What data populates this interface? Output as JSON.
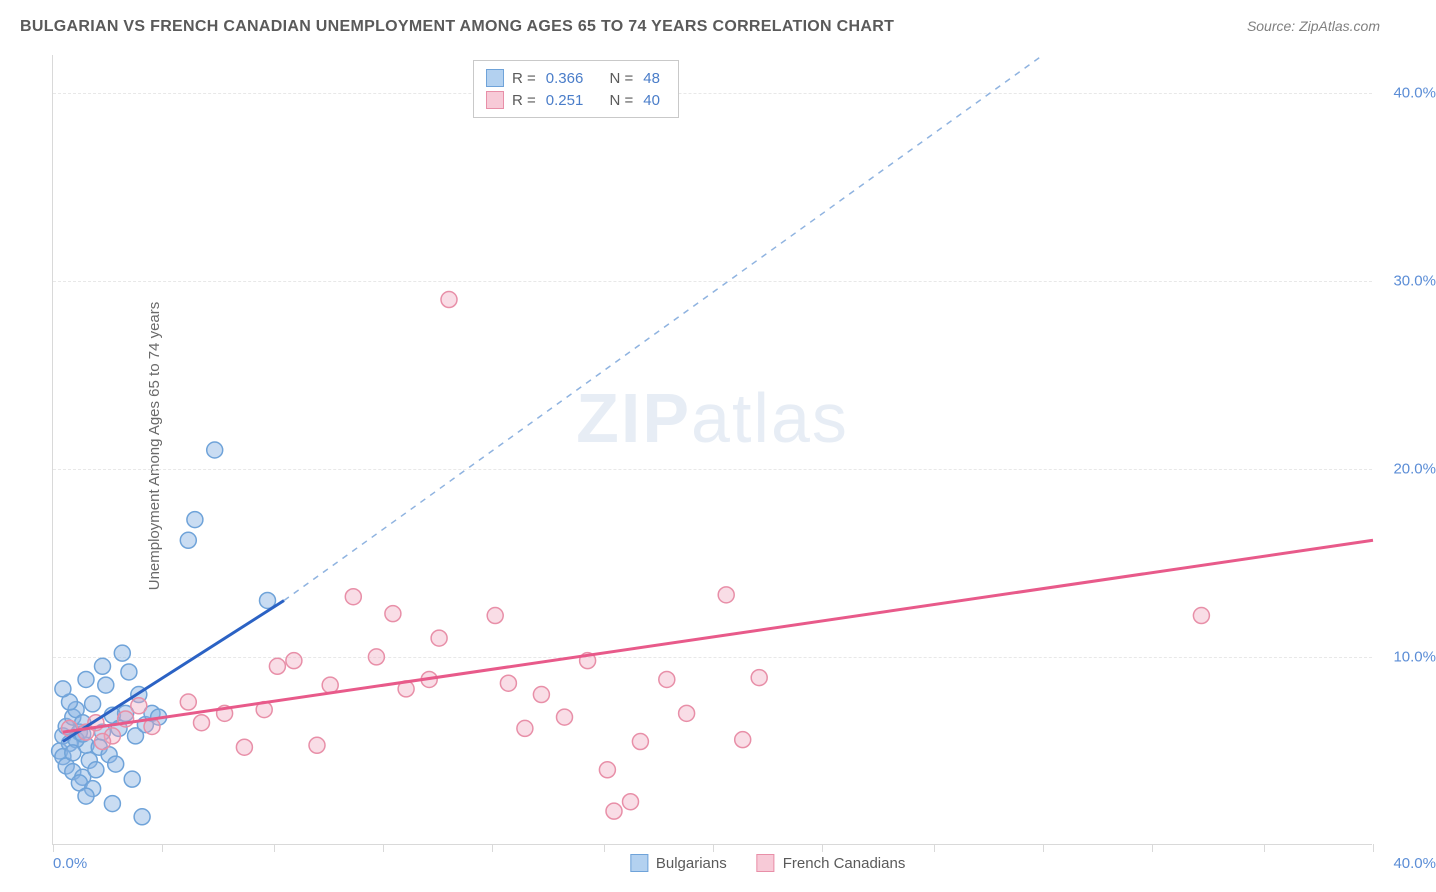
{
  "title": "BULGARIAN VS FRENCH CANADIAN UNEMPLOYMENT AMONG AGES 65 TO 74 YEARS CORRELATION CHART",
  "source_label": "Source:",
  "source_value": "ZipAtlas.com",
  "ylabel": "Unemployment Among Ages 65 to 74 years",
  "watermark": "ZIPatlas",
  "chart": {
    "type": "scatter",
    "xlim": [
      0,
      40
    ],
    "ylim": [
      0,
      42
    ],
    "xtick_positions": [
      0,
      3.3,
      6.7,
      10,
      13.3,
      16.7,
      20,
      23.3,
      26.7,
      30,
      33.3,
      36.7,
      40
    ],
    "xtick_labels_min": "0.0%",
    "xtick_labels_max": "40.0%",
    "ytick_values": [
      10,
      20,
      30,
      40
    ],
    "ytick_labels": [
      "10.0%",
      "20.0%",
      "30.0%",
      "40.0%"
    ],
    "grid_color": "#e8e8e8",
    "axis_color": "#d9d9d9",
    "background_color": "#ffffff",
    "tick_label_color": "#5b8dd6",
    "series": [
      {
        "name": "Bulgarians",
        "marker_color_fill": "rgba(135,178,226,0.45)",
        "marker_color_stroke": "#6fa3d9",
        "marker_radius": 8,
        "trend_line_color": "#2b62c4",
        "trend_line_width": 3,
        "trend_dashed_color": "#8fb3e0",
        "trend": {
          "x1": 0.3,
          "y1": 5.5,
          "x2": 7.0,
          "y2": 13.0,
          "x2_ext": 30,
          "y2_ext": 42
        },
        "swatch_fill": "#b3d1f0",
        "swatch_border": "#6fa3d9",
        "points": [
          [
            0.3,
            5.8
          ],
          [
            0.4,
            6.3
          ],
          [
            0.2,
            5.0
          ],
          [
            0.6,
            6.8
          ],
          [
            0.5,
            5.4
          ],
          [
            0.8,
            6.0
          ],
          [
            0.3,
            4.7
          ],
          [
            0.7,
            7.2
          ],
          [
            1.0,
            5.3
          ],
          [
            0.9,
            6.5
          ],
          [
            1.2,
            7.5
          ],
          [
            0.4,
            4.2
          ],
          [
            1.5,
            6.0
          ],
          [
            0.6,
            3.9
          ],
          [
            1.4,
            5.2
          ],
          [
            1.8,
            6.9
          ],
          [
            0.5,
            7.6
          ],
          [
            1.1,
            4.5
          ],
          [
            0.9,
            3.6
          ],
          [
            2.0,
            6.2
          ],
          [
            1.6,
            8.5
          ],
          [
            0.7,
            5.6
          ],
          [
            1.3,
            4.0
          ],
          [
            2.2,
            7.0
          ],
          [
            1.0,
            8.8
          ],
          [
            0.8,
            3.3
          ],
          [
            2.5,
            5.8
          ],
          [
            1.7,
            4.8
          ],
          [
            2.3,
            9.2
          ],
          [
            0.3,
            8.3
          ],
          [
            2.8,
            6.4
          ],
          [
            1.2,
            3.0
          ],
          [
            3.0,
            7.0
          ],
          [
            2.1,
            10.2
          ],
          [
            1.9,
            4.3
          ],
          [
            2.6,
            8.0
          ],
          [
            3.2,
            6.8
          ],
          [
            1.8,
            2.2
          ],
          [
            2.4,
            3.5
          ],
          [
            2.7,
            1.5
          ],
          [
            4.1,
            16.2
          ],
          [
            4.3,
            17.3
          ],
          [
            4.9,
            21.0
          ],
          [
            1.5,
            9.5
          ],
          [
            1.0,
            2.6
          ],
          [
            6.5,
            13.0
          ],
          [
            0.6,
            4.9
          ],
          [
            0.9,
            5.9
          ]
        ]
      },
      {
        "name": "French Canadians",
        "marker_color_fill": "rgba(238,165,190,0.38)",
        "marker_color_stroke": "#e88fa8",
        "marker_radius": 8,
        "trend_line_color": "#e85a8a",
        "trend_line_width": 3,
        "trend": {
          "x1": 0.3,
          "y1": 6.0,
          "x2": 40,
          "y2": 16.2
        },
        "swatch_fill": "#f7cad7",
        "swatch_border": "#e88fa8",
        "points": [
          [
            0.5,
            6.2
          ],
          [
            1.0,
            6.0
          ],
          [
            1.3,
            6.5
          ],
          [
            1.8,
            5.8
          ],
          [
            2.2,
            6.7
          ],
          [
            2.6,
            7.4
          ],
          [
            3.0,
            6.3
          ],
          [
            4.1,
            7.6
          ],
          [
            4.5,
            6.5
          ],
          [
            5.2,
            7.0
          ],
          [
            5.8,
            5.2
          ],
          [
            6.4,
            7.2
          ],
          [
            6.8,
            9.5
          ],
          [
            7.3,
            9.8
          ],
          [
            8.0,
            5.3
          ],
          [
            8.4,
            8.5
          ],
          [
            9.1,
            13.2
          ],
          [
            9.8,
            10.0
          ],
          [
            10.3,
            12.3
          ],
          [
            10.7,
            8.3
          ],
          [
            11.4,
            8.8
          ],
          [
            11.7,
            11.0
          ],
          [
            12.0,
            29.0
          ],
          [
            13.4,
            12.2
          ],
          [
            13.8,
            8.6
          ],
          [
            14.3,
            6.2
          ],
          [
            14.8,
            8.0
          ],
          [
            15.5,
            6.8
          ],
          [
            16.2,
            9.8
          ],
          [
            16.8,
            4.0
          ],
          [
            17.0,
            1.8
          ],
          [
            17.5,
            2.3
          ],
          [
            17.8,
            5.5
          ],
          [
            18.6,
            8.8
          ],
          [
            19.2,
            7.0
          ],
          [
            20.4,
            13.3
          ],
          [
            20.9,
            5.6
          ],
          [
            21.4,
            8.9
          ],
          [
            34.8,
            12.2
          ],
          [
            1.5,
            5.5
          ]
        ]
      }
    ]
  },
  "stats": [
    {
      "r_label": "R =",
      "r": "0.366",
      "n_label": "N =",
      "n": "48",
      "swatch_fill": "#b3d1f0",
      "swatch_border": "#6fa3d9"
    },
    {
      "r_label": "R =",
      "r": "0.251",
      "n_label": "N =",
      "n": "40",
      "swatch_fill": "#f7cad7",
      "swatch_border": "#e88fa8"
    }
  ],
  "legend": [
    {
      "label": "Bulgarians",
      "swatch_fill": "#b3d1f0",
      "swatch_border": "#6fa3d9"
    },
    {
      "label": "French Canadians",
      "swatch_fill": "#f7cad7",
      "swatch_border": "#e88fa8"
    }
  ]
}
